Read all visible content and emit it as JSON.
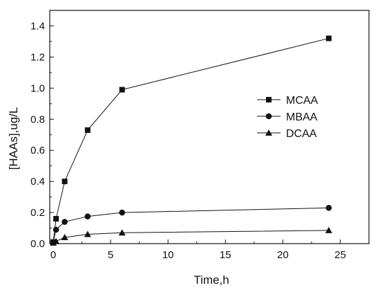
{
  "chart_data": {
    "type": "line",
    "xlabel": "Time,h",
    "ylabel": "[HAAs],ug/L",
    "xlim": [
      -0.3,
      27.5
    ],
    "ylim": [
      0,
      1.5
    ],
    "xticks": [
      0,
      5,
      10,
      15,
      20,
      25
    ],
    "yticks": [
      0.0,
      0.2,
      0.4,
      0.6,
      0.8,
      1.0,
      1.2,
      1.4
    ],
    "xtick_labels": [
      "0",
      "5",
      "10",
      "15",
      "20",
      "25"
    ],
    "ytick_labels": [
      "0.0",
      "0.2",
      "0.4",
      "0.6",
      "0.8",
      "1.0",
      "1.2",
      "1.4"
    ],
    "grid": false,
    "legend_position": "right-middle",
    "series": [
      {
        "name": "MCAA",
        "marker": "square",
        "x": [
          0,
          0.25,
          1,
          3,
          6,
          24
        ],
        "y": [
          0.01,
          0.16,
          0.4,
          0.73,
          0.99,
          1.32
        ]
      },
      {
        "name": "MBAA",
        "marker": "circle",
        "x": [
          0,
          0.25,
          1,
          3,
          6,
          24
        ],
        "y": [
          0.01,
          0.09,
          0.14,
          0.175,
          0.2,
          0.23
        ]
      },
      {
        "name": "DCAA",
        "marker": "triangle",
        "x": [
          0,
          0.25,
          1,
          3,
          6,
          24
        ],
        "y": [
          0.005,
          0.015,
          0.04,
          0.06,
          0.07,
          0.085
        ]
      }
    ]
  }
}
